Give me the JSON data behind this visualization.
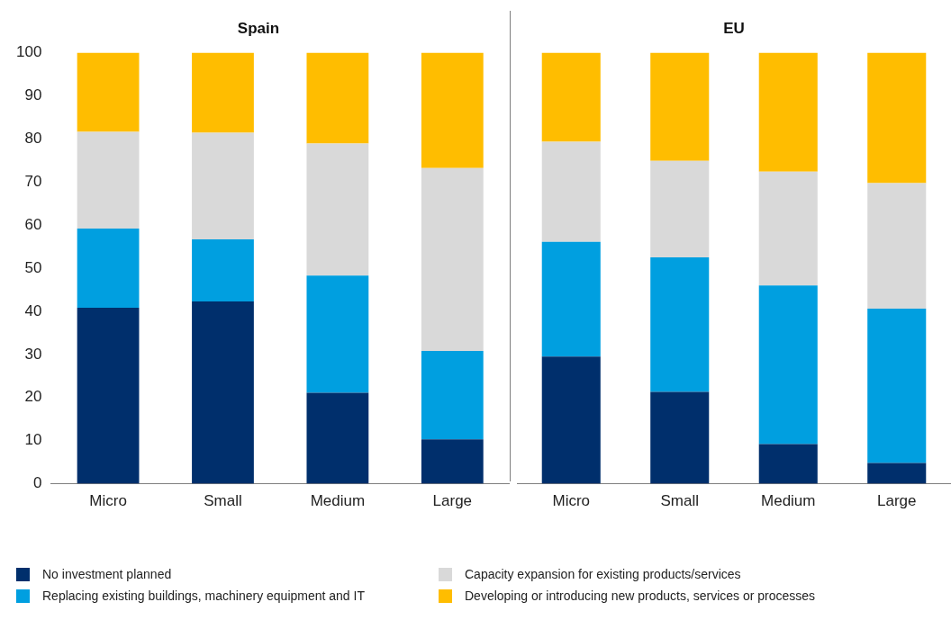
{
  "chart_data": [
    {
      "type": "bar",
      "title": "Spain",
      "stacked": true,
      "categories": [
        "Micro",
        "Small",
        "Medium",
        "Large"
      ],
      "ylim": [
        0,
        100
      ],
      "yticks": [
        0,
        10,
        20,
        30,
        40,
        50,
        60,
        70,
        80,
        90,
        100
      ],
      "grid": false,
      "legend": "bottom",
      "series": [
        {
          "name": "No investment planned",
          "color": "#002f6c",
          "values": [
            40.8,
            42.3,
            21.1,
            10.3
          ]
        },
        {
          "name": "Replacing existing buildings, machinery equipment and IT",
          "color": "#009fe0",
          "values": [
            18.4,
            14.4,
            27.2,
            20.5
          ]
        },
        {
          "name": "Capacity expansion for existing products/services",
          "color": "#d9d9d9",
          "values": [
            22.4,
            24.7,
            30.6,
            42.4
          ]
        },
        {
          "name": "Developing or introducing new products, services or processes",
          "color": "#ffbd00",
          "values": [
            18.4,
            18.6,
            21.1,
            26.8
          ]
        }
      ]
    },
    {
      "type": "bar",
      "title": "EU",
      "stacked": true,
      "categories": [
        "Micro",
        "Small",
        "Medium",
        "Large"
      ],
      "ylim": [
        0,
        100
      ],
      "yticks": [
        0,
        10,
        20,
        30,
        40,
        50,
        60,
        70,
        80,
        90,
        100
      ],
      "grid": false,
      "legend": false,
      "tick_labels": "x",
      "series": [
        {
          "color": "#002f6c",
          "values": [
            29.5,
            21.3,
            9.2,
            4.8
          ]
        },
        {
          "color": "#009fe0",
          "values": [
            26.6,
            31.2,
            36.8,
            35.8
          ]
        },
        {
          "color": "#d9d9d9",
          "values": [
            23.2,
            22.4,
            26.4,
            29.1
          ]
        },
        {
          "color": "#ffbd00",
          "values": [
            20.7,
            25.1,
            27.6,
            30.3
          ]
        }
      ]
    }
  ]
}
